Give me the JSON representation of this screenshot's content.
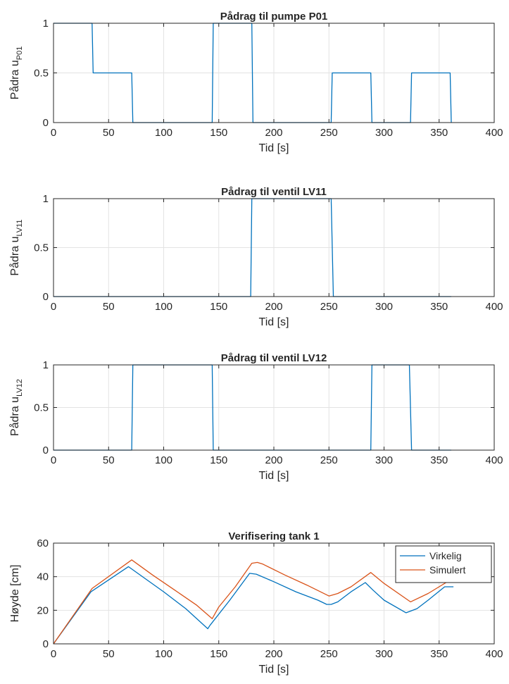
{
  "chart_data": [
    {
      "type": "line",
      "title": "Pådrag til pumpe P01",
      "xlabel": "Tid [s]",
      "ylabel": {
        "main": "Pådra u",
        "sub": "P01"
      },
      "xlim": [
        0,
        400
      ],
      "ylim": [
        0,
        1
      ],
      "xticks": [
        0,
        50,
        100,
        150,
        200,
        250,
        300,
        350,
        400
      ],
      "yticks": [
        0,
        0.5,
        1
      ],
      "grid": true,
      "series": [
        {
          "color": "#0072BD",
          "x": [
            0,
            35,
            36,
            71,
            72,
            144,
            145,
            180,
            181,
            252,
            253,
            288,
            289,
            324,
            325,
            360,
            361
          ],
          "y": [
            1,
            1,
            0.5,
            0.5,
            0,
            0,
            1,
            1,
            0,
            0,
            0.5,
            0.5,
            0,
            0,
            0.5,
            0.5,
            0
          ]
        }
      ]
    },
    {
      "type": "line",
      "title": "Pådrag til ventil LV11",
      "xlabel": "Tid [s]",
      "ylabel": {
        "main": "Pådra u",
        "sub": "LV11"
      },
      "xlim": [
        0,
        400
      ],
      "ylim": [
        0,
        1
      ],
      "xticks": [
        0,
        50,
        100,
        150,
        200,
        250,
        300,
        350,
        400
      ],
      "yticks": [
        0,
        0.5,
        1
      ],
      "grid": true,
      "series": [
        {
          "color": "#0072BD",
          "x": [
            0,
            179,
            180,
            252,
            254,
            361
          ],
          "y": [
            0,
            0,
            1,
            1,
            0,
            0
          ]
        }
      ]
    },
    {
      "type": "line",
      "title": "Pådrag til ventil LV12",
      "xlabel": "Tid [s]",
      "ylabel": {
        "main": "Pådra u",
        "sub": "LV12"
      },
      "xlim": [
        0,
        400
      ],
      "ylim": [
        0,
        1
      ],
      "xticks": [
        0,
        50,
        100,
        150,
        200,
        250,
        300,
        350,
        400
      ],
      "yticks": [
        0,
        0.5,
        1
      ],
      "grid": true,
      "series": [
        {
          "color": "#0072BD",
          "x": [
            0,
            71,
            72,
            144,
            145,
            288,
            289,
            323,
            325,
            361
          ],
          "y": [
            0,
            0,
            1,
            1,
            0,
            0,
            1,
            1,
            0,
            0
          ]
        }
      ]
    },
    {
      "type": "line",
      "title": "Verifisering tank 1",
      "xlabel": "Tid [s]",
      "ylabel": {
        "main": "Høyde [cm]",
        "sub": ""
      },
      "xlim": [
        0,
        400
      ],
      "ylim": [
        0,
        60
      ],
      "xticks": [
        0,
        50,
        100,
        150,
        200,
        250,
        300,
        350,
        400
      ],
      "yticks": [
        0,
        20,
        40,
        60
      ],
      "grid": true,
      "legend": "top-right",
      "series": [
        {
          "name": "Virkelig",
          "color": "#0072BD",
          "x": [
            0,
            34,
            68,
            85,
            100,
            120,
            140,
            142,
            160,
            178,
            184,
            200,
            220,
            240,
            248,
            252,
            258,
            270,
            283,
            290,
            300,
            320,
            330,
            340,
            355,
            363
          ],
          "y": [
            0,
            31,
            46,
            38,
            31,
            21,
            9,
            11,
            26,
            42,
            41.5,
            37,
            31,
            26,
            23.5,
            23.5,
            25,
            31,
            36.5,
            32,
            26,
            18.5,
            21,
            26,
            34,
            34
          ]
        },
        {
          "name": "Simulert",
          "color": "#D95319",
          "x": [
            0,
            35,
            71,
            90,
            110,
            130,
            144,
            150,
            165,
            180,
            185,
            190,
            210,
            230,
            250,
            258,
            270,
            288,
            300,
            324,
            340,
            360
          ],
          "y": [
            0,
            33,
            50,
            41,
            32,
            23,
            15,
            22,
            34,
            48,
            48.5,
            47.5,
            41,
            35,
            28.5,
            30,
            34,
            42.5,
            36,
            25,
            30,
            38
          ]
        }
      ]
    }
  ]
}
